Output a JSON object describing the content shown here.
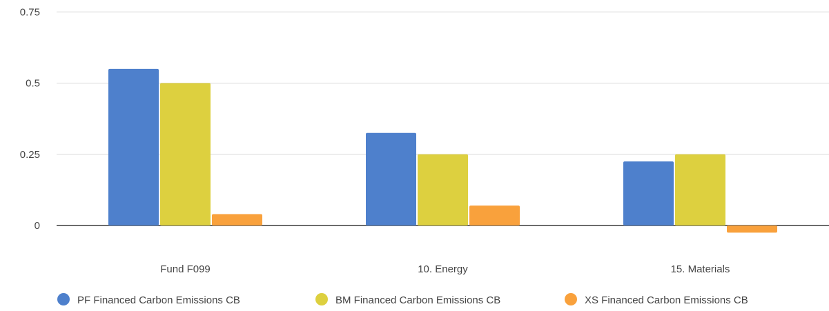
{
  "chart_data": {
    "type": "bar",
    "title": "",
    "xlabel": "",
    "ylabel": "",
    "categories": [
      "Fund F099",
      "10. Energy",
      "15. Materials"
    ],
    "series": [
      {
        "name": "PF Financed Carbon Emissions CB",
        "color": "#4e80cc",
        "values": [
          0.55,
          0.325,
          0.225
        ]
      },
      {
        "name": "BM Financed Carbon Emissions CB",
        "color": "#ddd03f",
        "values": [
          0.5,
          0.25,
          0.25
        ]
      },
      {
        "name": "XS Financed Carbon Emissions CB",
        "color": "#f9a13c",
        "values": [
          0.04,
          0.07,
          -0.025
        ]
      }
    ],
    "yticks": [
      {
        "value": 0,
        "label": "0"
      },
      {
        "value": 0.25,
        "label": "0.25"
      },
      {
        "value": 0.5,
        "label": "0.5"
      },
      {
        "value": 0.75,
        "label": "0.75"
      }
    ],
    "ylim": [
      -0.1,
      0.78
    ],
    "grid": true,
    "legend_position": "bottom"
  }
}
